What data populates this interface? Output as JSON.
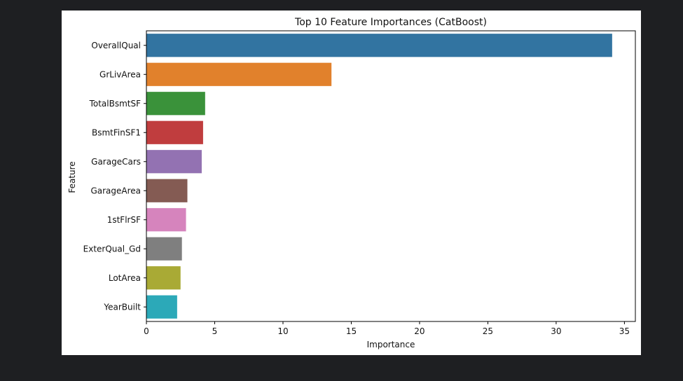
{
  "chart_data": {
    "type": "bar",
    "orientation": "horizontal",
    "title": "Top 10 Feature Importances (CatBoost)",
    "xlabel": "Importance",
    "ylabel": "Feature",
    "categories": [
      "OverallQual",
      "GrLivArea",
      "TotalBsmtSF",
      "BsmtFinSF1",
      "GarageCars",
      "GarageArea",
      "1stFlrSF",
      "ExterQual_Gd",
      "LotArea",
      "YearBuilt"
    ],
    "values": [
      34.1,
      13.55,
      4.3,
      4.15,
      4.05,
      3.0,
      2.9,
      2.6,
      2.5,
      2.25
    ],
    "colors": [
      "#3274a1",
      "#e1812c",
      "#3a923a",
      "#c03d3e",
      "#9372b2",
      "#845b53",
      "#d684bd",
      "#7f7f7f",
      "#a9aa35",
      "#2ca9b8"
    ],
    "xlim": [
      0,
      35.8
    ],
    "xticks": [
      0,
      5,
      10,
      15,
      20,
      25,
      30,
      35
    ],
    "grid": false,
    "legend": "none"
  }
}
